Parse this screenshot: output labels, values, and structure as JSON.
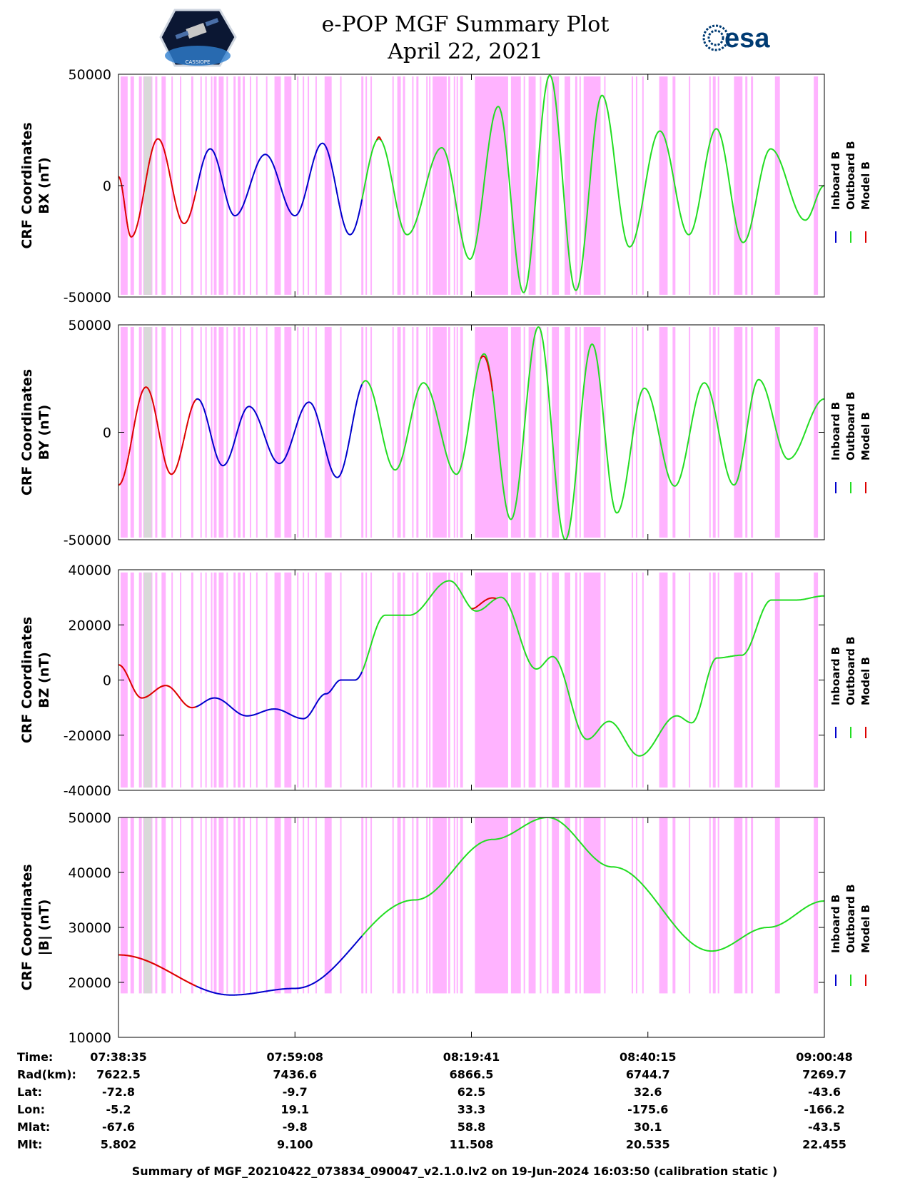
{
  "header": {
    "title_line1": "e-POP MGF Summary Plot",
    "title_line2": "April 22, 2021",
    "logo_text": "CASSIOPE",
    "esa_text": "esa"
  },
  "colors": {
    "inboard": "#0000cc",
    "outboard": "#22dd22",
    "model": "#dd0000",
    "shade": "#ffb3ff",
    "gray": "#d9d9d9"
  },
  "legend": {
    "inboard": "Inboard B",
    "outboard": "Outboard B",
    "model": "Model B"
  },
  "chart_data": {
    "type": "line",
    "x_ticks": [
      "07:38:35",
      "07:59:08",
      "08:19:41",
      "08:40:15",
      "09:00:48"
    ],
    "x_domain_seconds": [
      0,
      4933
    ],
    "shaded_intervals_fraction": [
      [
        0.003,
        0.013
      ],
      [
        0.017,
        0.022
      ],
      [
        0.029,
        0.033
      ],
      [
        0.035,
        0.048
      ],
      [
        0.052,
        0.055
      ],
      [
        0.061,
        0.067
      ],
      [
        0.075,
        0.077
      ],
      [
        0.087,
        0.088
      ],
      [
        0.103,
        0.106
      ],
      [
        0.116,
        0.117
      ],
      [
        0.123,
        0.124
      ],
      [
        0.131,
        0.132
      ],
      [
        0.135,
        0.139
      ],
      [
        0.142,
        0.149
      ],
      [
        0.153,
        0.155
      ],
      [
        0.163,
        0.166
      ],
      [
        0.169,
        0.173
      ],
      [
        0.176,
        0.179
      ],
      [
        0.186,
        0.188
      ],
      [
        0.195,
        0.196
      ],
      [
        0.209,
        0.21
      ],
      [
        0.221,
        0.23
      ],
      [
        0.235,
        0.245
      ],
      [
        0.253,
        0.255
      ],
      [
        0.261,
        0.262
      ],
      [
        0.268,
        0.27
      ],
      [
        0.279,
        0.28
      ],
      [
        0.292,
        0.302
      ],
      [
        0.314,
        0.316
      ],
      [
        0.344,
        0.347
      ],
      [
        0.35,
        0.35
      ],
      [
        0.357,
        0.359
      ],
      [
        0.388,
        0.39
      ],
      [
        0.395,
        0.4
      ],
      [
        0.403,
        0.406
      ],
      [
        0.416,
        0.417
      ],
      [
        0.422,
        0.425
      ],
      [
        0.436,
        0.437
      ],
      [
        0.44,
        0.44
      ],
      [
        0.445,
        0.465
      ],
      [
        0.467,
        0.47
      ],
      [
        0.475,
        0.477
      ],
      [
        0.479,
        0.481
      ],
      [
        0.484,
        0.488
      ],
      [
        0.505,
        0.552
      ],
      [
        0.556,
        0.57
      ],
      [
        0.574,
        0.576
      ],
      [
        0.581,
        0.591
      ],
      [
        0.597,
        0.599
      ],
      [
        0.607,
        0.608
      ],
      [
        0.614,
        0.624
      ],
      [
        0.632,
        0.64
      ],
      [
        0.647,
        0.65
      ],
      [
        0.653,
        0.655
      ],
      [
        0.659,
        0.683
      ],
      [
        0.688,
        0.69
      ],
      [
        0.727,
        0.729
      ],
      [
        0.733,
        0.734
      ],
      [
        0.742,
        0.744
      ],
      [
        0.766,
        0.778
      ],
      [
        0.785,
        0.789
      ],
      [
        0.808,
        0.809
      ],
      [
        0.837,
        0.839
      ],
      [
        0.842,
        0.846
      ],
      [
        0.849,
        0.85
      ],
      [
        0.872,
        0.884
      ],
      [
        0.888,
        0.891
      ],
      [
        0.896,
        0.899
      ],
      [
        0.93,
        0.937
      ],
      [
        0.985,
        0.991
      ]
    ],
    "gray_intervals_fraction": [
      [
        0.036,
        0.047
      ]
    ],
    "panels": [
      {
        "ylabel_line1": "CRF Coordinates",
        "ylabel_line2": "BX (nT)",
        "ylim": [
          -50000,
          50000
        ],
        "yticks": [
          {
            "v": 50000,
            "t": "50000"
          },
          {
            "v": 0,
            "t": "0"
          },
          {
            "v": -50000,
            "t": "-50000"
          }
        ],
        "shade_limits": [
          -49000,
          49000
        ],
        "extrema": [
          [
            0.0,
            4000
          ],
          [
            0.018,
            -23000
          ],
          [
            0.056,
            21000
          ],
          [
            0.093,
            -17000
          ],
          [
            0.13,
            16500
          ],
          [
            0.165,
            -13500
          ],
          [
            0.208,
            14000
          ],
          [
            0.25,
            -13500
          ],
          [
            0.289,
            19000
          ],
          [
            0.328,
            -22000
          ],
          [
            0.369,
            21000
          ],
          [
            0.409,
            -22000
          ],
          [
            0.458,
            17000
          ],
          [
            0.498,
            -33000
          ],
          [
            0.538,
            35500
          ],
          [
            0.574,
            -48000
          ],
          [
            0.611,
            49500
          ],
          [
            0.648,
            -47000
          ],
          [
            0.685,
            40500
          ],
          [
            0.724,
            -27500
          ],
          [
            0.767,
            24500
          ],
          [
            0.808,
            -22000
          ],
          [
            0.847,
            25500
          ],
          [
            0.885,
            -25500
          ],
          [
            0.924,
            16500
          ],
          [
            0.973,
            -15500
          ],
          [
            1.0,
            0
          ]
        ],
        "red_bump": {
          "from": 0.366,
          "to": 0.372,
          "offset": 800
        }
      },
      {
        "ylabel_line1": "CRF Coordinates",
        "ylabel_line2": "BY (nT)",
        "ylim": [
          -50000,
          50000
        ],
        "yticks": [
          {
            "v": 50000,
            "t": "50000"
          },
          {
            "v": 0,
            "t": "0"
          },
          {
            "v": -50000,
            "t": "-50000"
          }
        ],
        "shade_limits": [
          -49000,
          49000
        ],
        "extrema": [
          [
            0.0,
            -24500
          ],
          [
            0.039,
            21000
          ],
          [
            0.075,
            -19500
          ],
          [
            0.112,
            15500
          ],
          [
            0.148,
            -15500
          ],
          [
            0.185,
            12000
          ],
          [
            0.228,
            -14500
          ],
          [
            0.27,
            14000
          ],
          [
            0.31,
            -21000
          ],
          [
            0.35,
            24000
          ],
          [
            0.392,
            -17500
          ],
          [
            0.432,
            23000
          ],
          [
            0.479,
            -19500
          ],
          [
            0.518,
            36500
          ],
          [
            0.556,
            -40500
          ],
          [
            0.595,
            49000
          ],
          [
            0.633,
            -50000
          ],
          [
            0.671,
            41000
          ],
          [
            0.706,
            -37500
          ],
          [
            0.745,
            20500
          ],
          [
            0.788,
            -25000
          ],
          [
            0.83,
            23000
          ],
          [
            0.872,
            -24500
          ],
          [
            0.907,
            24500
          ],
          [
            0.949,
            -12500
          ],
          [
            1.0,
            15500
          ]
        ],
        "red_bump": {
          "from": 0.513,
          "to": 0.53,
          "offset": -1500
        }
      },
      {
        "ylabel_line1": "CRF Coordinates",
        "ylabel_line2": "BZ (nT)",
        "ylim": [
          -40000,
          40000
        ],
        "yticks": [
          {
            "v": 40000,
            "t": "40000"
          },
          {
            "v": 20000,
            "t": "20000"
          },
          {
            "v": 0,
            "t": "0"
          },
          {
            "v": -20000,
            "t": "-20000"
          },
          {
            "v": -40000,
            "t": "-40000"
          }
        ],
        "shade_limits": [
          -39000,
          39000
        ],
        "extrema": [
          [
            0.0,
            5500
          ],
          [
            0.033,
            -6500
          ],
          [
            0.067,
            -2000
          ],
          [
            0.104,
            -10000
          ],
          [
            0.136,
            -6500
          ],
          [
            0.182,
            -13000
          ],
          [
            0.221,
            -10500
          ],
          [
            0.262,
            -14000
          ],
          [
            0.294,
            -5000
          ],
          [
            0.315,
            0
          ],
          [
            0.335,
            0
          ],
          [
            0.378,
            23500
          ],
          [
            0.412,
            23500
          ],
          [
            0.469,
            36000
          ],
          [
            0.507,
            25000
          ],
          [
            0.542,
            30000
          ],
          [
            0.592,
            4000
          ],
          [
            0.615,
            8500
          ],
          [
            0.664,
            -21500
          ],
          [
            0.695,
            -15000
          ],
          [
            0.738,
            -27500
          ],
          [
            0.791,
            -13000
          ],
          [
            0.812,
            -15500
          ],
          [
            0.848,
            8000
          ],
          [
            0.883,
            9000
          ],
          [
            0.925,
            29000
          ],
          [
            0.96,
            29000
          ],
          [
            1.0,
            30500
          ]
        ],
        "red_bump": {
          "from": 0.5,
          "to": 0.535,
          "offset": 2500
        }
      },
      {
        "ylabel_line1": "CRF Coordinates",
        "ylabel_line2": "|B| (nT)",
        "ylim": [
          10000,
          50000
        ],
        "yticks": [
          {
            "v": 50000,
            "t": "50000"
          },
          {
            "v": 40000,
            "t": "40000"
          },
          {
            "v": 30000,
            "t": "30000"
          },
          {
            "v": 20000,
            "t": "20000"
          },
          {
            "v": 10000,
            "t": "10000"
          }
        ],
        "shade_limits": [
          18000,
          50000
        ],
        "extrema": [
          [
            0.0,
            25000
          ],
          [
            0.16,
            17700
          ],
          [
            0.25,
            18900
          ],
          [
            0.42,
            35000
          ],
          [
            0.53,
            46000
          ],
          [
            0.608,
            50000
          ],
          [
            0.7,
            41000
          ],
          [
            0.84,
            25700
          ],
          [
            0.92,
            30000
          ],
          [
            1.0,
            34800
          ]
        ],
        "red_bump": null
      }
    ],
    "series": [
      {
        "name": "Model B",
        "segment_fraction": [
          0.0,
          0.11
        ]
      },
      {
        "name": "Inboard B",
        "segment_fraction": [
          0.11,
          0.345
        ]
      },
      {
        "name": "Outboard B",
        "segment_fraction": [
          0.345,
          1.0
        ]
      }
    ]
  },
  "table": {
    "rows": [
      {
        "label": "Time:",
        "values": [
          "07:38:35",
          "07:59:08",
          "08:19:41",
          "08:40:15",
          "09:00:48"
        ]
      },
      {
        "label": "Rad(km):",
        "values": [
          "7622.5",
          "7436.6",
          "6866.5",
          "6744.7",
          "7269.7"
        ]
      },
      {
        "label": "Lat:",
        "values": [
          "-72.8",
          "-9.7",
          "62.5",
          "32.6",
          "-43.6"
        ]
      },
      {
        "label": "Lon:",
        "values": [
          "-5.2",
          "19.1",
          "33.3",
          "-175.6",
          "-166.2"
        ]
      },
      {
        "label": "Mlat:",
        "values": [
          "-67.6",
          "-9.8",
          "58.8",
          "30.1",
          "-43.5"
        ]
      },
      {
        "label": "Mlt:",
        "values": [
          "5.802",
          "9.100",
          "11.508",
          "20.535",
          "22.455"
        ]
      }
    ]
  },
  "footer": "Summary of MGF_20210422_073834_090047_v2.1.0.lv2 on 19-Jun-2024 16:03:50 (calibration static )"
}
